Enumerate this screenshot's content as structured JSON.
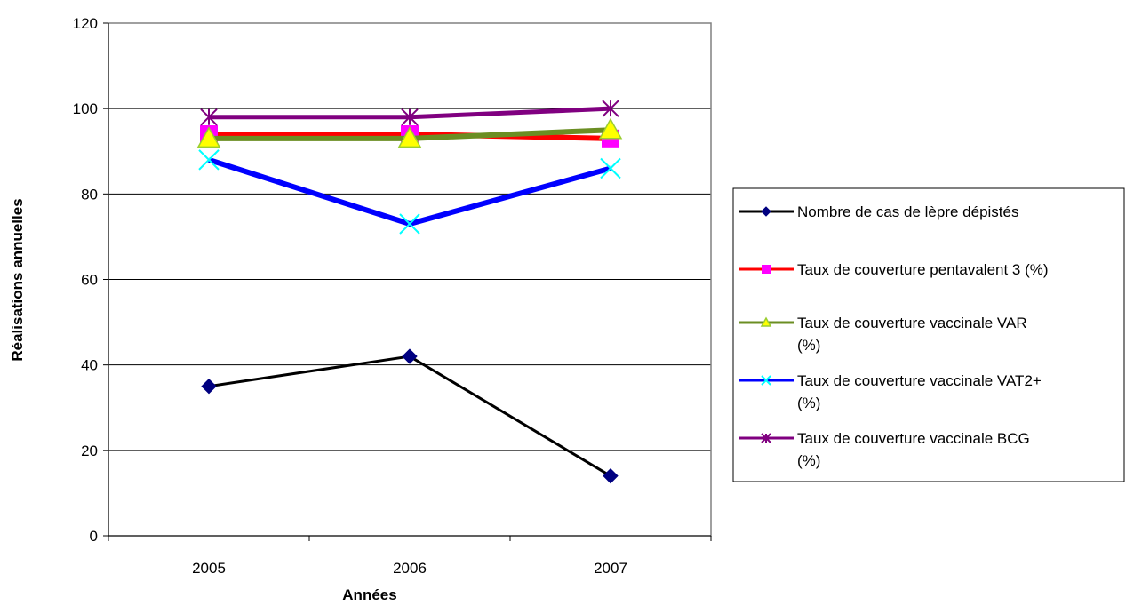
{
  "chart_data": {
    "type": "line",
    "title": "",
    "xlabel": "Années",
    "ylabel": "Réalisations annuelles",
    "categories": [
      "2005",
      "2006",
      "2007"
    ],
    "ylim": [
      0,
      120
    ],
    "yticks": [
      0,
      20,
      40,
      60,
      80,
      100,
      120
    ],
    "grid": "horizontal",
    "legend_position": "right",
    "series": [
      {
        "name": "Nombre de cas de lèpre dépistés",
        "values": [
          35,
          42,
          14
        ],
        "color": "#000000",
        "marker": "diamond",
        "marker_color": "#000080"
      },
      {
        "name": "Taux de couverture pentavalent 3 (%)",
        "values": [
          94,
          94,
          93
        ],
        "color": "#ff0000",
        "marker": "square",
        "marker_color": "#ff00ff"
      },
      {
        "name": "Taux de couverture vaccinale VAR (%)",
        "values": [
          93,
          93,
          95
        ],
        "color": "#6b8e23",
        "marker": "triangle",
        "marker_color": "#ffff00"
      },
      {
        "name": "Taux de couverture vaccinale VAT2+ (%)",
        "values": [
          88,
          73,
          86
        ],
        "color": "#0000ff",
        "marker": "x",
        "marker_color": "#00ffff"
      },
      {
        "name": "Taux de couverture vaccinale BCG (%)",
        "values": [
          98,
          98,
          100
        ],
        "color": "#800080",
        "marker": "star",
        "marker_color": "#800080"
      }
    ],
    "legend_lines": [
      [
        "Nombre de cas de lèpre dépistés"
      ],
      [
        "Taux de couverture pentavalent 3 (%)"
      ],
      [
        "Taux de couverture vaccinale VAR",
        "(%)"
      ],
      [
        "Taux de couverture vaccinale VAT2+",
        "(%)"
      ],
      [
        "Taux de couverture vaccinale BCG",
        "(%)"
      ]
    ]
  }
}
